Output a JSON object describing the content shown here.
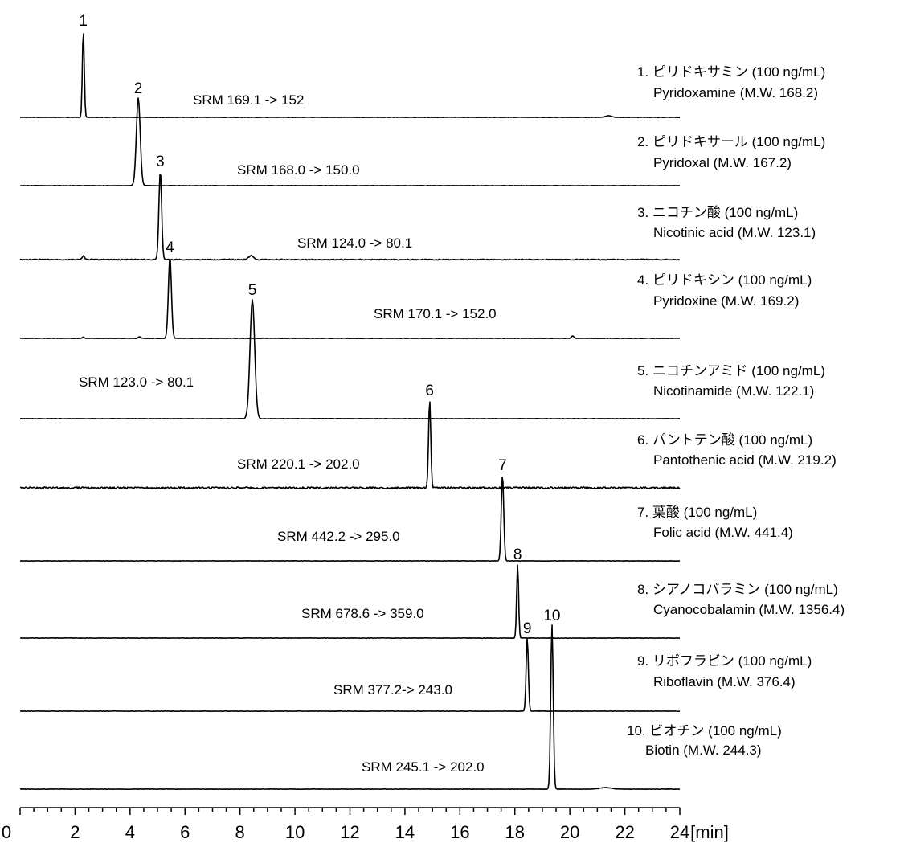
{
  "chart_data": {
    "type": "line",
    "xlabel": "[min]",
    "xlim": [
      0,
      24
    ],
    "xticks": [
      "0",
      "2",
      "4",
      "6",
      "8",
      "10",
      "12",
      "14",
      "16",
      "18",
      "20",
      "22",
      "24"
    ],
    "grid": false,
    "series": [
      {
        "peak": "1",
        "rt": 2.3,
        "srm": "SRM 169.1 -> 152",
        "jp": "1. ピリドキサミン (100 ng/mL)",
        "en": "Pyridoxamine (M.W. 168.2)"
      },
      {
        "peak": "2",
        "rt": 4.3,
        "srm": "SRM 168.0 -> 150.0",
        "jp": "2. ピリドキサール (100 ng/mL)",
        "en": "Pyridoxal (M.W. 167.2)"
      },
      {
        "peak": "3",
        "rt": 5.1,
        "srm": "SRM 124.0 -> 80.1",
        "jp": "3. ニコチン酸 (100 ng/mL)",
        "en": "Nicotinic acid (M.W. 123.1)"
      },
      {
        "peak": "4",
        "rt": 5.45,
        "srm": "SRM 170.1 -> 152.0",
        "jp": "4. ピリドキシン (100 ng/mL)",
        "en": "Pyridoxine (M.W. 169.2)"
      },
      {
        "peak": "5",
        "rt": 8.45,
        "srm": "SRM 123.0 -> 80.1",
        "jp": "5. ニコチンアミド (100 ng/mL)",
        "en": "Nicotinamide (M.W. 122.1)"
      },
      {
        "peak": "6",
        "rt": 14.9,
        "srm": "SRM 220.1 -> 202.0",
        "jp": "6. パントテン酸 (100 ng/mL)",
        "en": "Pantothenic acid (M.W. 219.2)"
      },
      {
        "peak": "7",
        "rt": 17.55,
        "srm": "SRM 442.2 -> 295.0",
        "jp": "7. 葉酸 (100 ng/mL)",
        "en": "Folic acid (M.W. 441.4)"
      },
      {
        "peak": "8",
        "rt": 18.1,
        "srm": "SRM 678.6 -> 359.0",
        "jp": "8. シアノコバラミン (100 ng/mL)",
        "en": "Cyanocobalamin (M.W. 1356.4)"
      },
      {
        "peak": "9",
        "rt": 18.45,
        "srm": "SRM 377.2-> 243.0",
        "jp": "9. リボフラビン (100 ng/mL)",
        "en": "Riboflavin (M.W. 376.4)"
      },
      {
        "peak": "10",
        "rt": 19.35,
        "srm": "SRM 245.1 -> 202.0",
        "jp": "10. ビオチン (100 ng/mL)",
        "en": "Biotin (M.W. 244.3)"
      }
    ]
  }
}
